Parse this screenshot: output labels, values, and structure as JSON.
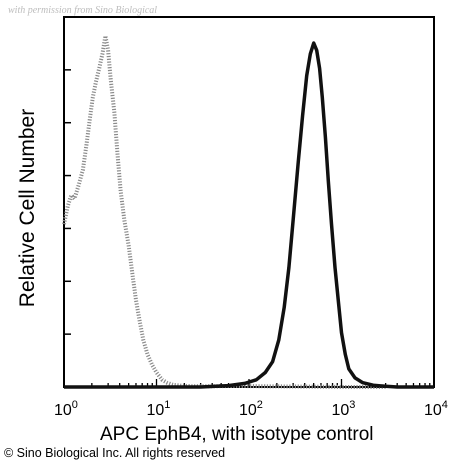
{
  "watermark": "with permission from Sino Biological",
  "copyright": "© Sino Biological Inc. All rights reserved",
  "chart_data": {
    "type": "line",
    "title": "",
    "xlabel": "APC EphB4, with isotype control",
    "ylabel": "Relative Cell Number",
    "x_scale": "log",
    "xlim": [
      1,
      10000
    ],
    "ylim": [
      0,
      1
    ],
    "x_ticks": [
      {
        "base": "10",
        "exp": "0",
        "value": 1
      },
      {
        "base": "10",
        "exp": "1",
        "value": 10
      },
      {
        "base": "10",
        "exp": "2",
        "value": 100
      },
      {
        "base": "10",
        "exp": "3",
        "value": 1000
      },
      {
        "base": "10",
        "exp": "4",
        "value": 10000
      }
    ],
    "grid": false,
    "legend": "none",
    "series": [
      {
        "style": "dotted-gray",
        "color": "#8a8a8a",
        "x": [
          1.0,
          1.1,
          1.2,
          1.3,
          1.45,
          1.6,
          1.75,
          1.9,
          2.05,
          2.2,
          2.4,
          2.6,
          2.8,
          3.0,
          3.2,
          3.5,
          3.8,
          4.1,
          4.5,
          5.0,
          5.5,
          6.0,
          6.6,
          7.2,
          8.0,
          9.0,
          10.0,
          11.5,
          13.0,
          15.0,
          18.0,
          25.0,
          40.0,
          70.0,
          150.0,
          400.0,
          1000.0,
          3000.0
        ],
        "y": [
          0.45,
          0.5,
          0.53,
          0.52,
          0.56,
          0.6,
          0.67,
          0.74,
          0.8,
          0.84,
          0.88,
          0.92,
          0.97,
          0.93,
          0.85,
          0.76,
          0.64,
          0.54,
          0.46,
          0.39,
          0.31,
          0.24,
          0.18,
          0.13,
          0.09,
          0.06,
          0.04,
          0.02,
          0.012,
          0.006,
          0.004,
          0.002,
          0.002,
          0.003,
          0.002,
          0.001,
          0.0,
          0.0
        ]
      },
      {
        "style": "solid-black",
        "color": "#111111",
        "x": [
          1.0,
          10.0,
          30.0,
          60.0,
          90.0,
          120.0,
          150.0,
          180.0,
          210.0,
          240.0,
          270.0,
          300.0,
          340.0,
          380.0,
          420.0,
          460.0,
          500.0,
          540.0,
          580.0,
          620.0,
          670.0,
          720.0,
          780.0,
          850.0,
          930.0,
          1000.0,
          1100.0,
          1200.0,
          1400.0,
          1700.0,
          2200.0,
          3000.0,
          4000.0,
          10000.0
        ],
        "y": [
          0.0,
          0.0,
          0.0,
          0.004,
          0.01,
          0.02,
          0.04,
          0.07,
          0.13,
          0.22,
          0.33,
          0.46,
          0.62,
          0.75,
          0.86,
          0.92,
          0.95,
          0.93,
          0.88,
          0.8,
          0.69,
          0.57,
          0.45,
          0.33,
          0.23,
          0.15,
          0.09,
          0.05,
          0.025,
          0.012,
          0.005,
          0.002,
          0.0,
          0.0
        ]
      }
    ]
  }
}
